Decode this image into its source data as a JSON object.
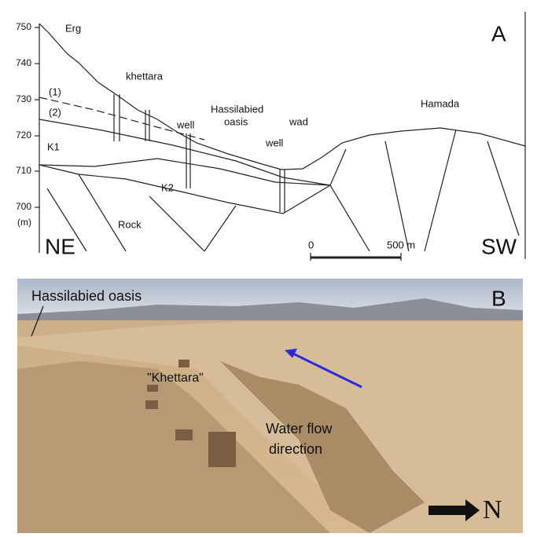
{
  "panel_a": {
    "label": "A",
    "y_axis": {
      "ticks": [
        "750",
        "740",
        "730",
        "720",
        "710",
        "700"
      ],
      "unit": "(m)"
    },
    "annotations": [
      "Erg",
      "khettara",
      "well",
      "Hassilabied",
      "oasis",
      "wad",
      "well",
      "Hamada",
      "(1)",
      "(2)",
      "K1",
      "K2",
      "Rock"
    ],
    "directions": [
      "NE",
      "SW"
    ],
    "scale_bar": [
      "0",
      "500 m"
    ]
  },
  "panel_b": {
    "label": "B",
    "annotations": [
      "Hassilabied oasis",
      "\"Khettara\"",
      "Water flow",
      "direction"
    ],
    "north": "N"
  }
}
